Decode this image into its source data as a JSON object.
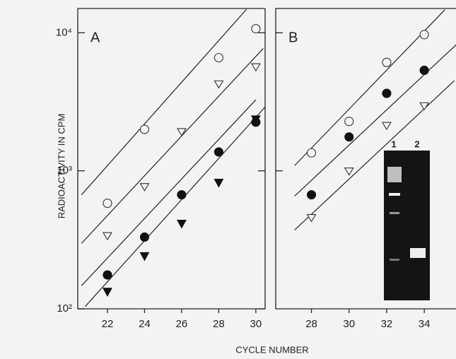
{
  "ylabel": "RADIOACTIVITY IN CPM",
  "xlabel": "CYCLE NUMBER",
  "chart_data": [
    {
      "type": "scatter",
      "title": "A",
      "log_y": true,
      "xlim": [
        20.4,
        30.5
      ],
      "xticks": [
        22,
        24,
        26,
        28,
        30
      ],
      "ylim": [
        100,
        15000
      ],
      "yticks": [
        {
          "value": 100,
          "label": "10²"
        },
        {
          "value": 1000,
          "label": "10³"
        },
        {
          "value": 10000,
          "label": "10⁴"
        }
      ],
      "x": [
        22,
        24,
        26,
        28,
        30
      ],
      "series": [
        {
          "marker": "circle-open",
          "color": "#333333",
          "values": [
            582,
            1996,
            null,
            6600,
            10700
          ]
        },
        {
          "marker": "triangle-open",
          "color": "#333333",
          "values": [
            340,
            772,
            1930,
            4280,
            5690
          ]
        },
        {
          "marker": "circle-filled",
          "color": "#111111",
          "values": [
            176,
            331,
            670,
            1370,
            2250
          ]
        },
        {
          "marker": "triangle-filled",
          "color": "#111111",
          "values": [
            133,
            241,
            414,
            820,
            2360
          ]
        }
      ],
      "fits": [
        {
          "x": [
            20.6,
            29.5
          ],
          "values": [
            670,
            14800
          ]
        },
        {
          "x": [
            20.6,
            30.4
          ],
          "values": [
            298,
            7700
          ]
        },
        {
          "x": [
            20.6,
            30.0
          ],
          "values": [
            147,
            3270
          ]
        },
        {
          "x": [
            20.8,
            30.5
          ],
          "values": [
            104,
            2900
          ]
        }
      ]
    },
    {
      "type": "scatter",
      "title": "B",
      "log_y": true,
      "xlim": [
        26.1,
        35.8
      ],
      "xticks": [
        28,
        30,
        32,
        34
      ],
      "ylim": [
        100,
        15000
      ],
      "yticks": [
        {
          "value": 1000,
          "label": ""
        },
        {
          "value": 10000,
          "label": ""
        }
      ],
      "x": [
        28,
        30,
        32,
        34
      ],
      "series": [
        {
          "marker": "circle-open",
          "color": "#333333",
          "values": [
            1350,
            2280,
            6100,
            9700
          ]
        },
        {
          "marker": "circle-filled",
          "color": "#111111",
          "values": [
            670,
            1760,
            3640,
            5350
          ]
        },
        {
          "marker": "triangle-open",
          "color": "#333333",
          "values": [
            460,
            1000,
            2140,
            2970
          ]
        }
      ],
      "fits": [
        {
          "x": [
            27.1,
            35.1
          ],
          "values": [
            1090,
            14700
          ]
        },
        {
          "x": [
            27.1,
            35.7
          ],
          "values": [
            655,
            8200
          ]
        },
        {
          "x": [
            27.1,
            35.6
          ],
          "values": [
            372,
            4500
          ]
        }
      ],
      "inset_labels": [
        "1",
        "2"
      ]
    }
  ]
}
